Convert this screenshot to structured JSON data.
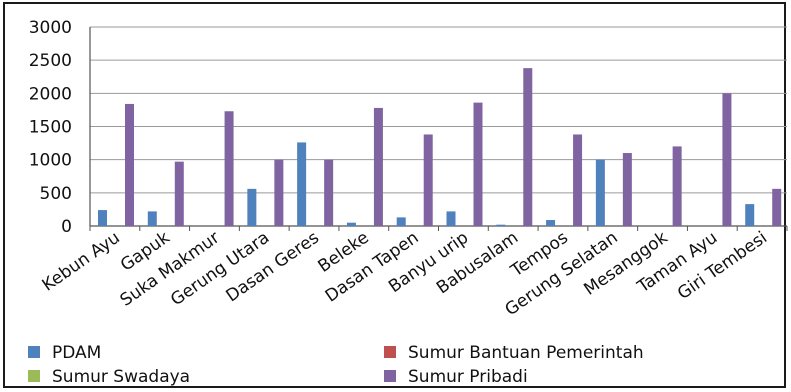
{
  "chart_data": {
    "type": "bar",
    "title": "",
    "xlabel": "",
    "ylabel": "",
    "ylim": [
      0,
      3000
    ],
    "yticks": [
      0,
      500,
      1000,
      1500,
      2000,
      2500,
      3000
    ],
    "grid": true,
    "legend_position": "bottom",
    "categories": [
      "Kebun Ayu",
      "Gapuk",
      "Suka Makmur",
      "Gerung Utara",
      "Dasan Geres",
      "Beleke",
      "Dasan Tapen",
      "Banyu urip",
      "Babusalam",
      "Tempos",
      "Gerung Selatan",
      "Mesanggok",
      "Taman Ayu",
      "Giri Tembesi"
    ],
    "series": [
      {
        "name": "PDAM",
        "color": "#4f81bd",
        "values": [
          240,
          220,
          0,
          560,
          1260,
          50,
          130,
          220,
          20,
          90,
          1000,
          0,
          0,
          330
        ]
      },
      {
        "name": "Sumur Bantuan Pemerintah",
        "color": "#c0504d",
        "values": [
          0,
          0,
          0,
          0,
          0,
          0,
          0,
          0,
          0,
          0,
          0,
          0,
          0,
          0
        ]
      },
      {
        "name": "Sumur Swadaya",
        "color": "#9bbb59",
        "values": [
          0,
          0,
          0,
          0,
          0,
          0,
          0,
          0,
          0,
          0,
          0,
          0,
          0,
          0
        ]
      },
      {
        "name": "Sumur Pribadi",
        "color": "#8064a2",
        "values": [
          1840,
          970,
          1730,
          1000,
          1000,
          1780,
          1380,
          1860,
          2380,
          1380,
          1100,
          1200,
          2000,
          560
        ]
      }
    ]
  }
}
